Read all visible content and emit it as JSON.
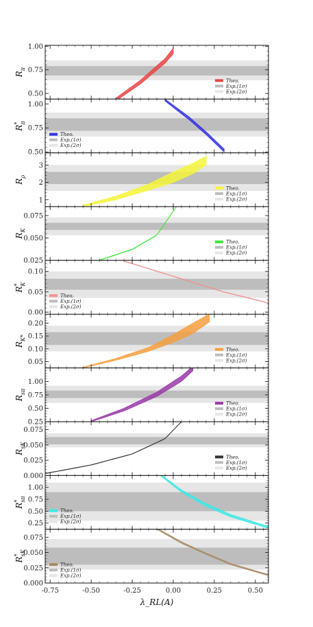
{
  "chart_data": {
    "type": "area",
    "xlabel": "λ_RL(A)",
    "xlim": [
      -0.78,
      0.58
    ],
    "xticks": [
      "-0.75",
      "-0.50",
      "-0.25",
      "0.00",
      "0.25",
      "0.50"
    ],
    "xtick_values": [
      -0.75,
      -0.5,
      -0.25,
      0.0,
      0.25,
      0.5
    ],
    "legend_labels": {
      "theo": "Theo.",
      "exp1": "Exp.(1σ)",
      "exp2": "Exp.(2σ)"
    },
    "colors": {
      "exp1": "#bdbdbd",
      "exp2": "#e6e6e6"
    },
    "panels": [
      {
        "ylabel": "R",
        "sub": "π",
        "sup": "",
        "ylim": [
          0.44,
          1.01
        ],
        "yticks": [
          "0.50",
          "0.75",
          "1.00"
        ],
        "ytick_values": [
          0.5,
          0.75,
          1.0
        ],
        "exp1": [
          0.69,
          0.79
        ],
        "exp2": [
          0.64,
          0.85
        ],
        "legend": "bottom-right",
        "color": "#e84646",
        "band": [
          [
            -0.35,
            0.42,
            0.45
          ],
          [
            -0.2,
            0.6,
            0.64
          ],
          [
            -0.05,
            0.82,
            0.87
          ],
          [
            0.0,
            0.92,
            0.98
          ]
        ]
      },
      {
        "ylabel": "R",
        "sub": "π",
        "sup": "*",
        "ylim": [
          0.49,
          1.05
        ],
        "yticks": [
          "0.50",
          "0.75",
          "1.00"
        ],
        "ytick_values": [
          0.5,
          0.75,
          1.0
        ],
        "exp1": [
          0.72,
          0.85
        ],
        "exp2": [
          0.66,
          0.91
        ],
        "legend": "bottom-left",
        "color": "#3434e0",
        "band": [
          [
            -0.05,
            1.03,
            1.05
          ],
          [
            0.1,
            0.83,
            0.86
          ],
          [
            0.2,
            0.68,
            0.71
          ],
          [
            0.31,
            0.5,
            0.53
          ]
        ]
      },
      {
        "ylabel": "R",
        "sub": "ρ",
        "sup": "",
        "ylim": [
          0.6,
          3.7
        ],
        "yticks": [
          "1",
          "2",
          "3"
        ],
        "ytick_values": [
          1,
          2,
          3
        ],
        "exp1": [
          1.9,
          2.6
        ],
        "exp2": [
          1.5,
          3.0
        ],
        "legend": "bottom-right",
        "color": "#f5f53a",
        "band": [
          [
            -0.55,
            0.6,
            0.68
          ],
          [
            -0.35,
            1.0,
            1.2
          ],
          [
            -0.15,
            1.55,
            1.9
          ],
          [
            0.0,
            2.0,
            2.6
          ],
          [
            0.12,
            2.5,
            3.1
          ],
          [
            0.2,
            3.0,
            3.5
          ]
        ]
      },
      {
        "ylabel": "R",
        "sub": "K",
        "sup": "",
        "ylim": [
          0.025,
          0.085
        ],
        "yticks": [
          "0.025",
          "0.050",
          "0.075"
        ],
        "ytick_values": [
          0.025,
          0.05,
          0.075
        ],
        "exp1": [
          0.059,
          0.067
        ],
        "exp2": [
          0.053,
          0.073
        ],
        "legend": "bottom-right",
        "color": "#3ee83e",
        "band": [
          [
            -0.45,
            0.025,
            0.0255
          ],
          [
            -0.25,
            0.037,
            0.0375
          ],
          [
            -0.1,
            0.053,
            0.0535
          ],
          [
            0.02,
            0.085,
            0.0855
          ]
        ]
      },
      {
        "ylabel": "R",
        "sub": "K",
        "sup": "*",
        "ylim": [
          -0.005,
          0.127
        ],
        "yticks": [
          "0.00",
          "0.05",
          "0.10"
        ],
        "ytick_values": [
          0.0,
          0.05,
          0.1
        ],
        "exp1": [
          0.055,
          0.082
        ],
        "exp2": [
          0.035,
          0.1
        ],
        "legend": "bottom-left",
        "color": "#f09090",
        "band": [
          [
            -0.3,
            0.125,
            0.126
          ],
          [
            -0.1,
            0.1,
            0.101
          ],
          [
            0.1,
            0.075,
            0.076
          ],
          [
            0.3,
            0.05,
            0.051
          ],
          [
            0.5,
            0.03,
            0.031
          ],
          [
            0.58,
            0.022,
            0.023
          ]
        ]
      },
      {
        "ylabel": "R",
        "sub": "K*",
        "sup": "",
        "ylim": [
          0.025,
          0.235
        ],
        "yticks": [
          "0.05",
          "0.10",
          "0.15",
          "0.20"
        ],
        "ytick_values": [
          0.05,
          0.1,
          0.15,
          0.2
        ],
        "exp1": [
          0.115,
          0.165
        ],
        "exp2": [
          0.09,
          0.19
        ],
        "legend": "bottom-right",
        "color": "#f5a040",
        "band": [
          [
            -0.55,
            0.025,
            0.028
          ],
          [
            -0.35,
            0.055,
            0.062
          ],
          [
            -0.15,
            0.09,
            0.105
          ],
          [
            0.0,
            0.125,
            0.155
          ],
          [
            0.12,
            0.16,
            0.2
          ],
          [
            0.22,
            0.205,
            0.235
          ]
        ]
      },
      {
        "ylabel": "R",
        "sub": "sπ",
        "sup": "",
        "ylim": [
          0.25,
          1.25
        ],
        "yticks": [
          "0.25",
          "0.50",
          "0.75",
          "1.00"
        ],
        "ytick_values": [
          0.25,
          0.5,
          0.75,
          1.0
        ],
        "exp1": [
          0.69,
          0.83
        ],
        "exp2": [
          0.6,
          0.92
        ],
        "legend": "bottom-right",
        "color": "#9a3aa8",
        "band": [
          [
            -0.5,
            0.25,
            0.27
          ],
          [
            -0.3,
            0.45,
            0.5
          ],
          [
            -0.1,
            0.72,
            0.8
          ],
          [
            0.05,
            1.0,
            1.1
          ],
          [
            0.12,
            1.2,
            1.28
          ]
        ]
      },
      {
        "ylabel": "R",
        "sub": "sK",
        "sup": "",
        "ylim": [
          0.0,
          0.088
        ],
        "yticks": [
          "0.000",
          "0.025",
          "0.050",
          "0.075"
        ],
        "ytick_values": [
          0.0,
          0.025,
          0.05,
          0.075
        ],
        "exp1": [
          0.051,
          0.063
        ],
        "exp2": [
          0.046,
          0.069
        ],
        "legend": "bottom-right",
        "color": "#333333",
        "band": [
          [
            -0.78,
            0.003,
            0.0035
          ],
          [
            -0.5,
            0.017,
            0.0175
          ],
          [
            -0.25,
            0.035,
            0.0355
          ],
          [
            -0.05,
            0.06,
            0.0605
          ],
          [
            0.05,
            0.088,
            0.0885
          ]
        ]
      },
      {
        "ylabel": "R",
        "sub": "sπ",
        "sup": "*",
        "ylim": [
          0.12,
          1.25
        ],
        "yticks": [
          "0.25",
          "0.50",
          "0.75",
          "1.00"
        ],
        "ytick_values": [
          0.25,
          0.5,
          0.75,
          1.0
        ],
        "exp1": [
          0.5,
          0.9
        ],
        "exp2": [
          0.3,
          1.1
        ],
        "legend": "bottom-left",
        "color": "#40e8e8",
        "band": [
          [
            -0.08,
            1.25,
            1.28
          ],
          [
            0.05,
            0.9,
            0.95
          ],
          [
            0.2,
            0.6,
            0.66
          ],
          [
            0.35,
            0.38,
            0.43
          ],
          [
            0.58,
            0.14,
            0.18
          ]
        ]
      },
      {
        "ylabel": "R",
        "sub": "sK",
        "sup": "*",
        "ylim": [
          0.0,
          0.088
        ],
        "yticks": [
          "0.000",
          "0.025",
          "0.050",
          "0.075"
        ],
        "ytick_values": [
          0.0,
          0.025,
          0.05,
          0.075
        ],
        "exp1": [
          0.03,
          0.058
        ],
        "exp2": [
          0.022,
          0.072
        ],
        "legend": "bottom-left",
        "color": "#a88a66",
        "band": [
          [
            -0.1,
            0.088,
            0.09
          ],
          [
            0.05,
            0.065,
            0.0675
          ],
          [
            0.2,
            0.047,
            0.049
          ],
          [
            0.35,
            0.03,
            0.032
          ],
          [
            0.58,
            0.012,
            0.014
          ]
        ]
      }
    ]
  }
}
